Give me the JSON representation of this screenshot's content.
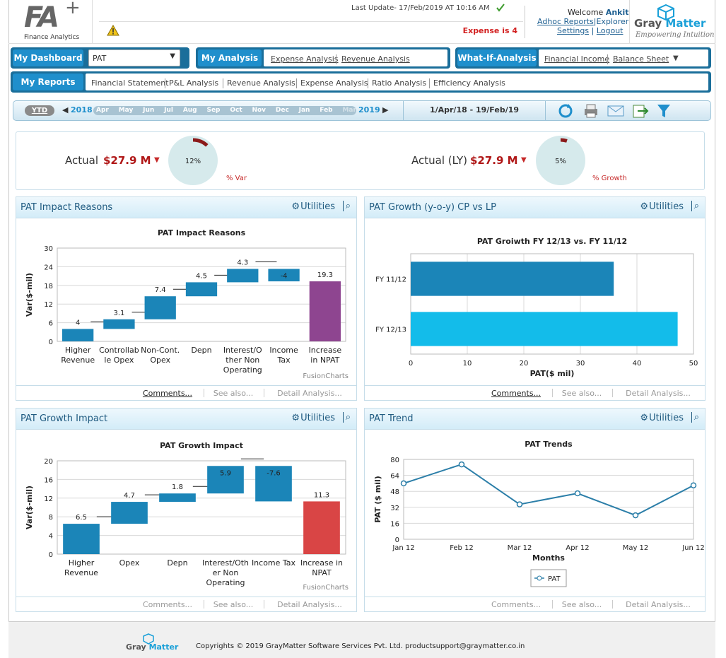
{
  "header": {
    "logo": "FA",
    "logo_plus": "+",
    "logo_sub": "Finance Analytics",
    "last_update": "Last Update- 17/Feb/2019 AT 10:16 AM",
    "alert": "Expense is 4",
    "welcome": "Welcome",
    "user": "Ankit",
    "links": [
      "Adhoc Reports",
      "Explorer",
      "Settings",
      "Logout"
    ],
    "brand": [
      "Gray",
      "Matter"
    ],
    "tagline": "Empowering Intuition"
  },
  "nav": {
    "dashboard": "My Dashboard",
    "select": "PAT",
    "analysis": "My Analysis",
    "analysis_links": [
      "Expense Analysis",
      "Revenue Analysis"
    ],
    "whatif": "What-If-Analysis",
    "whatif_links": [
      "Financial Income",
      "Balance Sheet"
    ],
    "reports": "My Reports",
    "report_links": [
      "Financial Statement",
      "P&L Analysis",
      "Revenue Analysis",
      "Expense Analysis",
      "Ratio Analysis",
      "Efficiency Analysis"
    ]
  },
  "timeline": {
    "period": "YTD",
    "start_year": "2018",
    "months": [
      "Apr",
      "May",
      "Jun",
      "Jul",
      "Aug",
      "Sep",
      "Oct",
      "Nov",
      "Dec",
      "Jan",
      "Feb",
      "Mar"
    ],
    "end_year": "2019",
    "range": "1/Apr/18 - 19/Feb/19"
  },
  "kpis": [
    {
      "label": "Actual",
      "value": "$27.9 M",
      "gauge": {
        "value": 12,
        "label": "12%"
      },
      "caption": "% Var"
    },
    {
      "label": "Actual (LY)",
      "value": "$27.9 M",
      "gauge": {
        "value": 5,
        "label": "5%"
      },
      "caption": "% Growth"
    }
  ],
  "panels": [
    "PAT Impact Reasons",
    "PAT Growth (y-o-y) CP vs LP",
    "PAT Growth Impact",
    "PAT Trend"
  ],
  "panel_tools": "Utilities",
  "panel_links": [
    "Comments...",
    "See also...",
    "Detail Analysis..."
  ],
  "credit": "FusionCharts",
  "chart_data": [
    {
      "type": "waterfall",
      "title": "PAT Impact Reasons",
      "categories": [
        "Higher Revenue",
        "Controllable Opex",
        "Non-Cont. Opex",
        "Depn",
        "Interest/Other Non Operating",
        "Income Tax",
        "Increase in NPAT"
      ],
      "values": [
        4,
        3.1,
        7.4,
        4.5,
        4.3,
        -4,
        19.3
      ],
      "colors": [
        "#1b85b8",
        "#1b85b8",
        "#1b85b8",
        "#1b85b8",
        "#1b85b8",
        "#1b85b8",
        "#8e4590"
      ],
      "ylim": [
        0,
        30
      ],
      "yticks": [
        0,
        6,
        12,
        18,
        24,
        30
      ],
      "ylabel": "Var($-mil)",
      "grid": true
    },
    {
      "type": "hbar",
      "title": "PAT Groiwth FY 12/13 vs. FY 11/12",
      "categories": [
        "FY 11/12",
        "FY 12/13"
      ],
      "values": [
        35.9,
        47.2
      ],
      "colors": [
        "#1b85b8",
        "#13bcea"
      ],
      "xlim": [
        0,
        50
      ],
      "xticks": [
        0,
        10,
        20,
        30,
        40,
        50
      ],
      "xlabel": "PAT($ mil)",
      "grid": true
    },
    {
      "type": "waterfall",
      "title": "PAT Growth Impact",
      "categories": [
        "Higher Revenue",
        "Opex",
        "Depn",
        "Interest/Other Non Operating",
        "Income Tax",
        "Increase in NPAT"
      ],
      "values": [
        6.5,
        4.7,
        1.8,
        5.9,
        -7.6,
        11.3
      ],
      "colors": [
        "#1b85b8",
        "#1b85b8",
        "#1b85b8",
        "#1b85b8",
        "#1b85b8",
        "#d94545"
      ],
      "ylim": [
        0,
        20
      ],
      "yticks": [
        0,
        4,
        8,
        12,
        16,
        20
      ],
      "ylabel": "Var($-mil)",
      "grid": true
    },
    {
      "type": "line",
      "title": "PAT Trends",
      "categories": [
        "Jan 12",
        "Feb 12",
        "Mar 12",
        "Apr 12",
        "May 12",
        "Jun 12"
      ],
      "series": [
        {
          "name": "PAT",
          "color": "#2b7ea8",
          "values": [
            56,
            75,
            35,
            46,
            24,
            54
          ]
        }
      ],
      "ylim": [
        0,
        80
      ],
      "yticks": [
        0,
        16,
        32,
        48,
        64,
        80
      ],
      "xlabel": "Months",
      "ylabel": "PAT ($ mil)",
      "grid": true,
      "legend": "bottom"
    }
  ],
  "footer": {
    "brand": [
      "Gray",
      "Matter"
    ],
    "copyright": "Copyrights © 2019 GrayMatter Software Services Pvt. Ltd. productsupport@graymatter.co.in"
  }
}
